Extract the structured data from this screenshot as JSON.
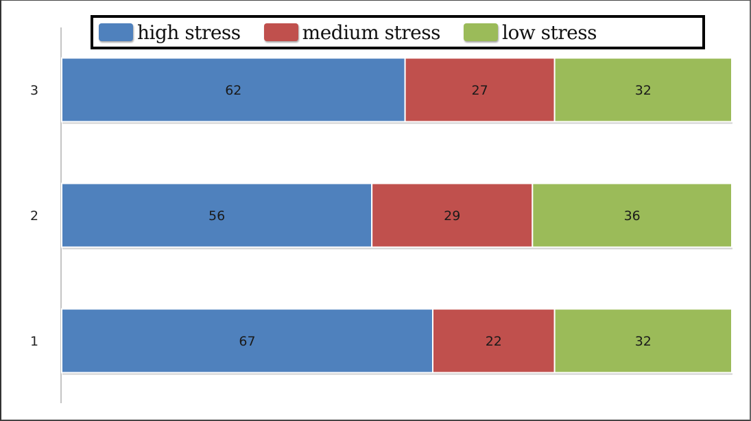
{
  "chart_data": {
    "type": "bar",
    "orientation": "horizontal",
    "stacked": true,
    "categories": [
      "1",
      "2",
      "3"
    ],
    "series": [
      {
        "name": "high stress",
        "values": [
          67,
          56,
          62
        ],
        "color": "#4f81bd"
      },
      {
        "name": "medium stress",
        "values": [
          22,
          29,
          27
        ],
        "color": "#c0504d"
      },
      {
        "name": "low stress",
        "values": [
          32,
          36,
          32
        ],
        "color": "#9bbb59"
      }
    ],
    "title": "",
    "xlabel": "",
    "ylabel": "",
    "legend_position": "top",
    "grid": false,
    "show_data_labels": true
  }
}
